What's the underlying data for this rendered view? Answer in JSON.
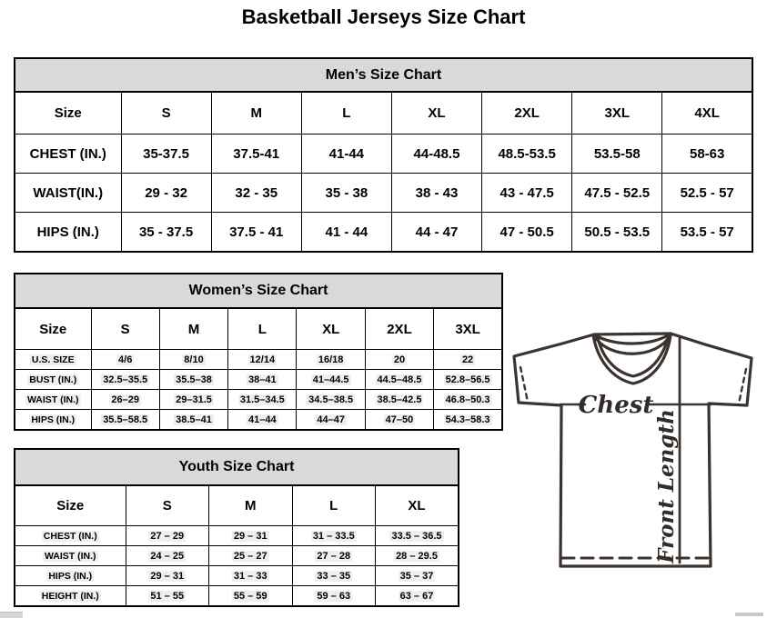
{
  "page_title": "Basketball Jerseys Size Chart",
  "colors": {
    "header_bg": "#d9d9d9",
    "table_border": "#000000",
    "diagram_line": "#3a332f"
  },
  "tables": {
    "men": {
      "title": "Men’s Size Chart",
      "size_label": "Size",
      "columns": [
        "S",
        "M",
        "L",
        "XL",
        "2XL",
        "3XL",
        "4XL"
      ],
      "rows": [
        {
          "label": "CHEST (IN.)",
          "values": [
            "35-37.5",
            "37.5-41",
            "41-44",
            "44-48.5",
            "48.5-53.5",
            "53.5-58",
            "58-63"
          ]
        },
        {
          "label": "WAIST(IN.)",
          "values": [
            "29 - 32",
            "32 - 35",
            "35 - 38",
            "38 - 43",
            "43 - 47.5",
            "47.5 - 52.5",
            "52.5 - 57"
          ]
        },
        {
          "label": "HIPS (IN.)",
          "values": [
            "35 - 37.5",
            "37.5 - 41",
            "41 - 44",
            "44 - 47",
            "47 - 50.5",
            "50.5 - 53.5",
            "53.5 - 57"
          ]
        }
      ]
    },
    "women": {
      "title": "Women’s Size Chart",
      "size_label": "Size",
      "columns": [
        "S",
        "M",
        "L",
        "XL",
        "2XL",
        "3XL"
      ],
      "rows": [
        {
          "label": "U.S. SIZE",
          "values": [
            "4/6",
            "8/10",
            "12/14",
            "16/18",
            "20",
            "22"
          ]
        },
        {
          "label": "BUST (IN.)",
          "values": [
            "32.5–35.5",
            "35.5–38",
            "38–41",
            "41–44.5",
            "44.5–48.5",
            "52.8–56.5"
          ]
        },
        {
          "label": "WAIST (IN.)",
          "values": [
            "26–29",
            "29–31.5",
            "31.5–34.5",
            "34.5–38.5",
            "38.5–42.5",
            "46.8–50.3"
          ]
        },
        {
          "label": "HIPS (IN.)",
          "values": [
            "35.5–58.5",
            "38.5–41",
            "41–44",
            "44–47",
            "47–50",
            "54.3–58.3"
          ]
        }
      ]
    },
    "youth": {
      "title": "Youth Size Chart",
      "size_label": "Size",
      "columns": [
        "S",
        "M",
        "L",
        "XL"
      ],
      "rows": [
        {
          "label": "CHEST (IN.)",
          "values": [
            "27 – 29",
            "29 – 31",
            "31 – 33.5",
            "33.5 – 36.5"
          ]
        },
        {
          "label": "WAIST (IN.)",
          "values": [
            "24 – 25",
            "25 – 27",
            "27 – 28",
            "28 – 29.5"
          ]
        },
        {
          "label": "HIPS (IN.)",
          "values": [
            "29 – 31",
            "31 – 33",
            "33 – 35",
            "35 – 37"
          ]
        },
        {
          "label": "HEIGHT (IN.)",
          "values": [
            "51 – 55",
            "55 – 59",
            "59 – 63",
            "63 – 67"
          ]
        }
      ]
    }
  },
  "diagram": {
    "chest_label": "Chest",
    "front_length_label": "Front Length"
  }
}
